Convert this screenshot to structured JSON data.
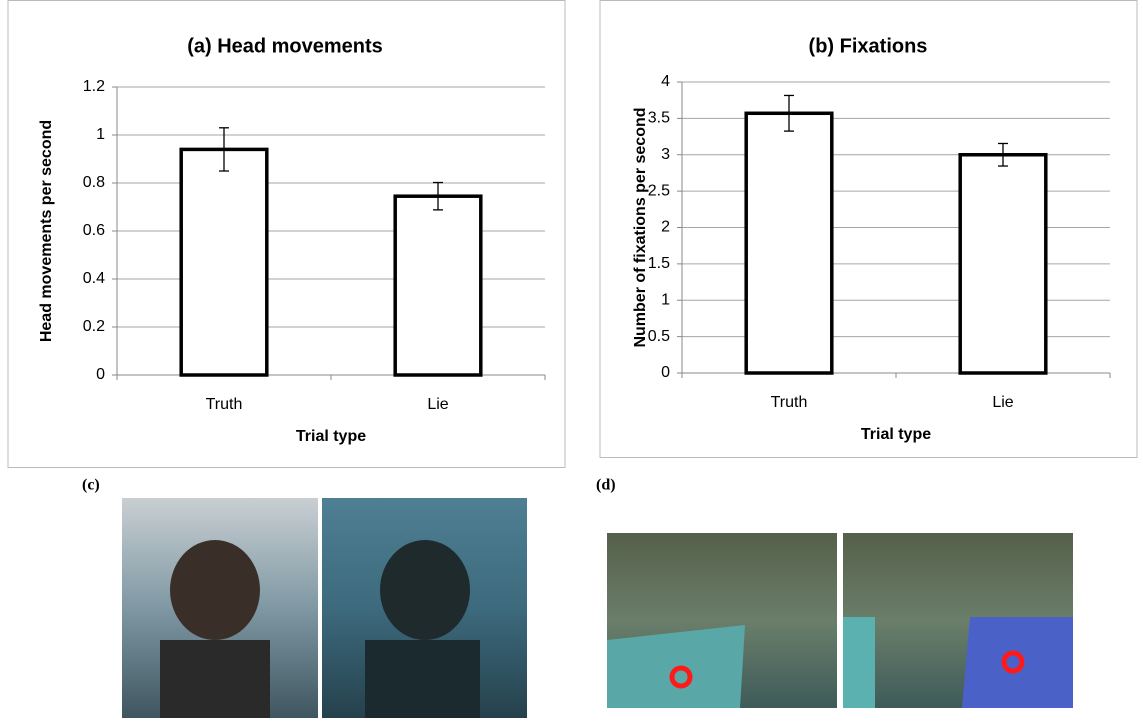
{
  "chart_data": [
    {
      "type": "bar",
      "title": "(a) Head movements",
      "y_label": "Head movements per second",
      "x_label": "Trial type",
      "categories": [
        "Truth",
        "Lie"
      ],
      "values": [
        0.94,
        0.745
      ],
      "errors": [
        0.09,
        0.057
      ],
      "color": "#ffffff",
      "ylim": [
        0,
        1.2
      ],
      "yticks": [
        0,
        0.2,
        0.4,
        0.6,
        0.8,
        1,
        1.2
      ],
      "grid": true
    },
    {
      "type": "bar",
      "title": "(b) Fixations",
      "y_label": "Number of fixations per second",
      "x_label": "Trial type",
      "categories": [
        "Truth",
        "Lie"
      ],
      "values": [
        3.57,
        3.0
      ],
      "errors": [
        0.245,
        0.155
      ],
      "color": "#ffffff",
      "ylim": [
        0,
        4
      ],
      "yticks": [
        0,
        0.5,
        1,
        1.5,
        2,
        2.5,
        3,
        3.5,
        4
      ],
      "grid": true
    }
  ],
  "panel_labels": [
    "(c)",
    "(d)"
  ]
}
